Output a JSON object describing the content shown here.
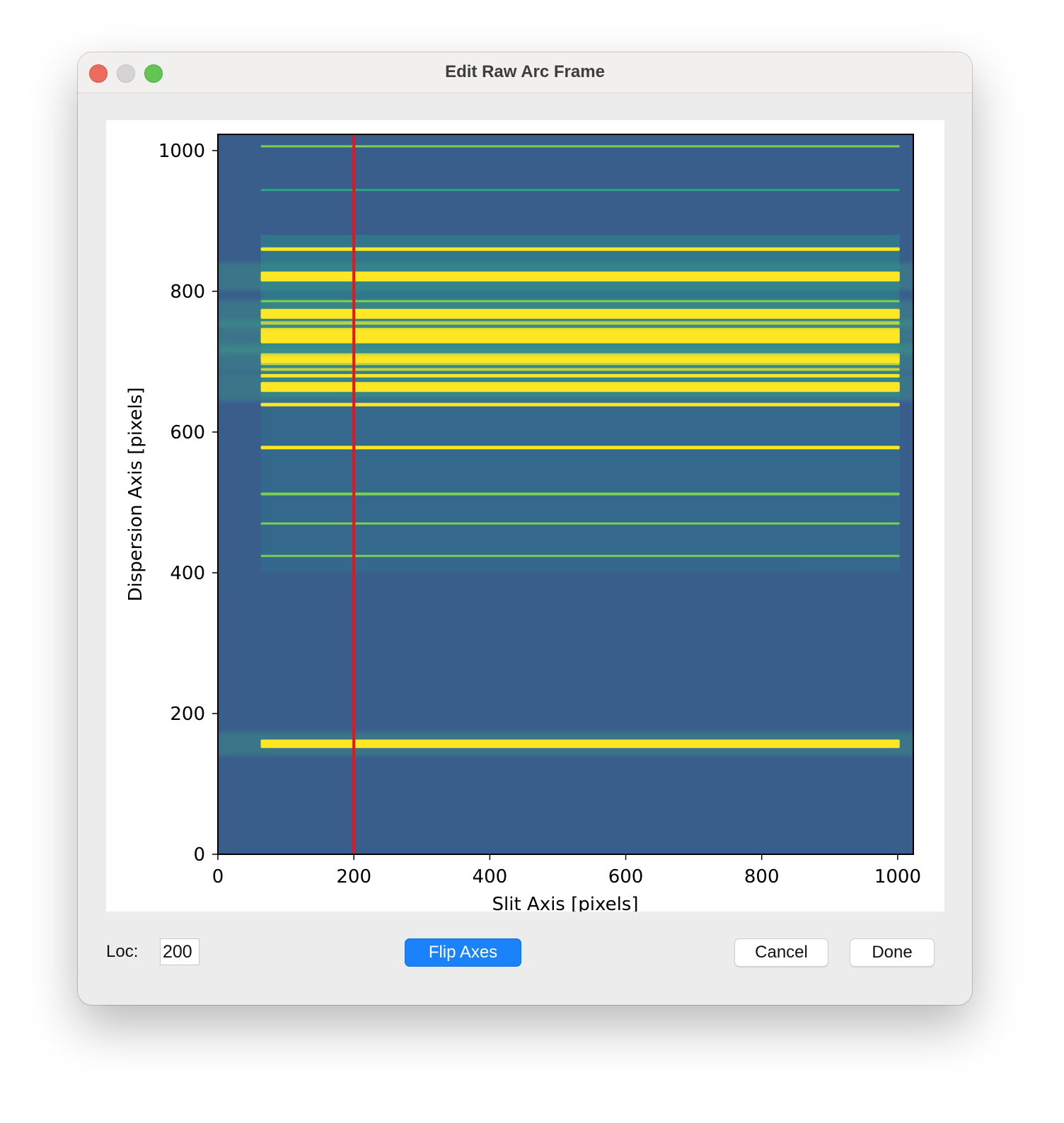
{
  "window": {
    "title": "Edit Raw Arc Frame",
    "buttons": [
      "close",
      "minimize",
      "zoom"
    ]
  },
  "chart_data": {
    "type": "heatmap",
    "title": "",
    "xlabel": "Slit Axis  [pixels]",
    "ylabel": "Dispersion Axis  [pixels]",
    "xlim": [
      0,
      1023
    ],
    "ylim": [
      0,
      1023
    ],
    "xticks": [
      0,
      200,
      400,
      600,
      800,
      1000
    ],
    "yticks": [
      0,
      200,
      400,
      600,
      800,
      1000
    ],
    "colormap": "viridis",
    "background_color": "#3a5e8c",
    "illuminated_region_x": [
      63,
      1003
    ],
    "emission_lines": [
      {
        "y": 157,
        "intensity": 1.0,
        "width": 12
      },
      {
        "y": 424,
        "intensity": 0.6,
        "width": 3
      },
      {
        "y": 470,
        "intensity": 0.6,
        "width": 3
      },
      {
        "y": 512,
        "intensity": 0.65,
        "width": 4
      },
      {
        "y": 578,
        "intensity": 1.0,
        "width": 5
      },
      {
        "y": 639,
        "intensity": 1.0,
        "width": 5
      },
      {
        "y": 664,
        "intensity": 1.0,
        "width": 14
      },
      {
        "y": 680,
        "intensity": 1.0,
        "width": 5
      },
      {
        "y": 689,
        "intensity": 1.0,
        "width": 4
      },
      {
        "y": 697,
        "intensity": 1.0,
        "width": 4
      },
      {
        "y": 705,
        "intensity": 1.0,
        "width": 14
      },
      {
        "y": 735,
        "intensity": 1.0,
        "width": 18
      },
      {
        "y": 745,
        "intensity": 1.0,
        "width": 6
      },
      {
        "y": 755,
        "intensity": 1.0,
        "width": 5
      },
      {
        "y": 768,
        "intensity": 1.0,
        "width": 14
      },
      {
        "y": 786,
        "intensity": 0.7,
        "width": 3
      },
      {
        "y": 821,
        "intensity": 1.0,
        "width": 14
      },
      {
        "y": 860,
        "intensity": 1.0,
        "width": 5
      },
      {
        "y": 944,
        "intensity": 0.4,
        "width": 3
      },
      {
        "y": 1006,
        "intensity": 0.6,
        "width": 3
      }
    ],
    "marker_line": {
      "x": 200,
      "color": "#e8141a"
    }
  },
  "controls": {
    "loc_label": "Loc:",
    "loc_value": "200",
    "flip_label": "Flip Axes",
    "cancel_label": "Cancel",
    "done_label": "Done"
  }
}
